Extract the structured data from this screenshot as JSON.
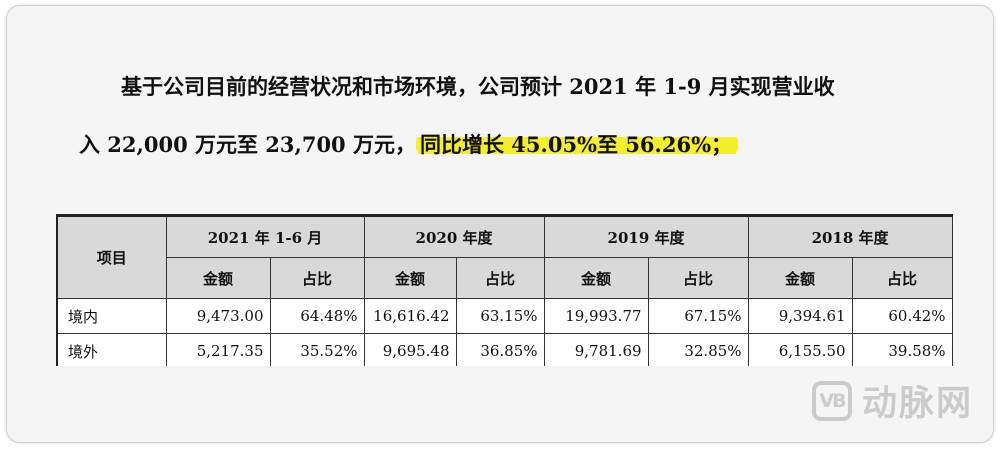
{
  "paragraph": {
    "line1": "基于公司目前的经营状况和市场环境，公司预计 2021 年 1-9 月实现营业收",
    "line2_plain": "入 22,000 万元至 23,700 万元，",
    "line2_highlight": "同比增长 45.05%至 56.26%；"
  },
  "highlight_color": "#f5ee2a",
  "table": {
    "item_header": "项目",
    "periods": [
      "2021 年 1-6 月",
      "2020 年度",
      "2019 年度",
      "2018 年度"
    ],
    "sub_headers": [
      "金额",
      "占比"
    ],
    "rows": [
      {
        "label": "境内",
        "values": [
          "9,473.00",
          "64.48%",
          "16,616.42",
          "63.15%",
          "19,993.77",
          "67.15%",
          "9,394.61",
          "60.42%"
        ]
      },
      {
        "label": "境外",
        "values": [
          "5,217.35",
          "35.52%",
          "9,695.48",
          "36.85%",
          "9,781.69",
          "32.85%",
          "6,155.50",
          "39.58%"
        ]
      }
    ]
  },
  "watermark": {
    "logo_text": "VB",
    "text": "动脉网"
  }
}
